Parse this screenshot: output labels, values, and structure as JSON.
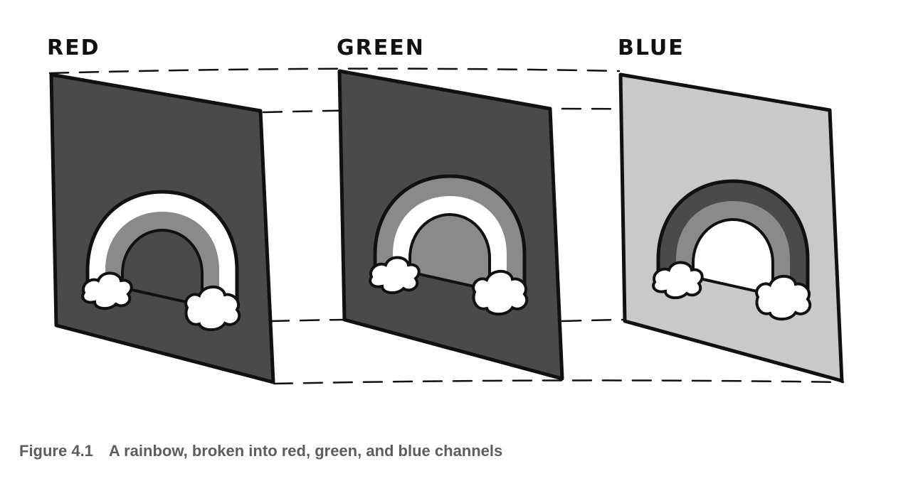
{
  "panels": [
    {
      "id": "red",
      "label": "RED",
      "panel_color": "#4a4b48",
      "arc_colors": [
        "#ffffff",
        "#8a8b87",
        "#4a4b48"
      ]
    },
    {
      "id": "green",
      "label": "GREEN",
      "panel_color": "#4a4b48",
      "arc_colors": [
        "#8a8b87",
        "#ffffff",
        "#8a8b87"
      ]
    },
    {
      "id": "blue",
      "label": "BLUE",
      "panel_color": "#c9cac6",
      "arc_colors": [
        "#4a4b48",
        "#8a8b87",
        "#ffffff"
      ]
    }
  ],
  "caption": {
    "figure_number": "Figure 4.1",
    "text": "A rainbow, broken into red, green, and blue channels"
  },
  "colors": {
    "outline": "#111111",
    "cloud": "#ffffff",
    "caption": "#5b5e60"
  }
}
